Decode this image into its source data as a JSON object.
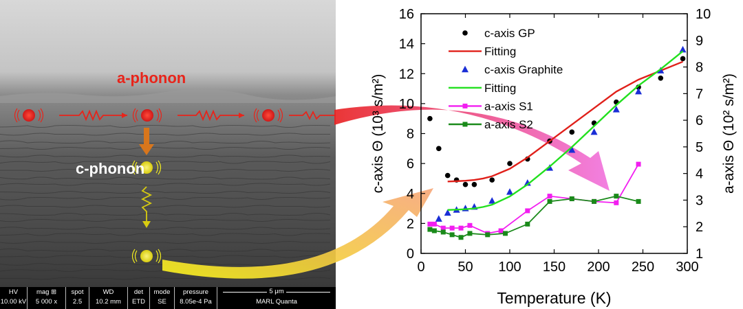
{
  "sem_panel": {
    "label_a_phonon": "a-phonon",
    "label_c_phonon": "c-phonon",
    "databar": {
      "headers": [
        "HV",
        "mag ⊞",
        "spot",
        "WD",
        "det",
        "mode",
        "pressure"
      ],
      "values": [
        "10.00 kV",
        "5 000 x",
        "2.5",
        "10.2 mm",
        "ETD",
        "SE",
        "8.05e-4 Pa"
      ],
      "scale_label": "5 μm",
      "instrument": "MARL Quanta"
    },
    "colors": {
      "a_phonon": "#e8241a",
      "c_phonon": "#f2ec1e"
    }
  },
  "chart_data": {
    "type": "scatter",
    "xlabel": "Temperature (K)",
    "ylabel_left": "c-axis Θ (10³ s/m²)",
    "ylabel_right": "a-axis Θ (10² s/m²)",
    "xlim": [
      0,
      300
    ],
    "ylim_left": [
      0,
      16
    ],
    "ylim_right": [
      1,
      10
    ],
    "xticks": [
      0,
      50,
      100,
      150,
      200,
      250,
      300
    ],
    "yticks_left": [
      0,
      2,
      4,
      6,
      8,
      10,
      12,
      14,
      16
    ],
    "yticks_right": [
      1,
      2,
      3,
      4,
      5,
      6,
      7,
      8,
      9,
      10
    ],
    "legend_position": "top-left",
    "grid": false,
    "series": [
      {
        "name": "c-axis GP",
        "kind": "points",
        "marker": "circle",
        "color": "#000000",
        "axis": "left",
        "x": [
          10,
          20,
          30,
          40,
          50,
          60,
          80,
          100,
          120,
          145,
          170,
          195,
          220,
          245,
          270,
          295
        ],
        "y": [
          9.0,
          7.0,
          5.2,
          4.9,
          4.6,
          4.6,
          4.9,
          6.0,
          6.3,
          7.5,
          8.1,
          8.7,
          10.1,
          11.1,
          11.7,
          13.0
        ]
      },
      {
        "name": "Fitting",
        "kind": "line",
        "color": "#e0201a",
        "axis": "left",
        "x": [
          30,
          40,
          50,
          60,
          70,
          80,
          100,
          120,
          145,
          170,
          195,
          220,
          245,
          270,
          295
        ],
        "y": [
          4.8,
          4.82,
          4.85,
          4.9,
          5.0,
          5.15,
          5.65,
          6.4,
          7.5,
          8.6,
          9.7,
          10.8,
          11.6,
          12.2,
          12.8
        ]
      },
      {
        "name": "c-axis Graphite",
        "kind": "points",
        "marker": "triangle",
        "color": "#1a2ed6",
        "axis": "left",
        "x": [
          20,
          30,
          40,
          50,
          60,
          80,
          100,
          120,
          145,
          170,
          195,
          220,
          245,
          270,
          295
        ],
        "y": [
          2.3,
          2.7,
          2.9,
          3.0,
          3.1,
          3.5,
          4.1,
          4.7,
          5.7,
          6.9,
          8.1,
          9.6,
          10.8,
          12.2,
          13.6
        ]
      },
      {
        "name": "Fitting",
        "kind": "line",
        "color": "#22e01e",
        "axis": "left",
        "x": [
          30,
          40,
          50,
          60,
          70,
          80,
          100,
          120,
          145,
          170,
          195,
          220,
          245,
          270,
          295
        ],
        "y": [
          2.9,
          2.92,
          2.95,
          3.0,
          3.1,
          3.25,
          3.8,
          4.6,
          5.8,
          7.1,
          8.5,
          9.9,
          11.2,
          12.3,
          13.5
        ]
      },
      {
        "name": "a-axis S1",
        "kind": "line-points",
        "marker": "square",
        "color": "#f21ef0",
        "axis": "right",
        "x": [
          10,
          15,
          25,
          35,
          45,
          55,
          75,
          90,
          120,
          145,
          170,
          195,
          220,
          245
        ],
        "y": [
          2.1,
          2.1,
          1.95,
          1.95,
          1.95,
          2.05,
          1.75,
          1.85,
          2.6,
          3.15,
          3.05,
          2.95,
          2.9,
          4.35
        ]
      },
      {
        "name": "a-axis S2",
        "kind": "line-points",
        "marker": "square",
        "color": "#1a8a1a",
        "axis": "right",
        "x": [
          10,
          15,
          25,
          35,
          45,
          55,
          75,
          95,
          120,
          145,
          170,
          195,
          220,
          245
        ],
        "y": [
          1.9,
          1.85,
          1.8,
          1.7,
          1.6,
          1.75,
          1.7,
          1.75,
          2.1,
          2.95,
          3.05,
          2.95,
          3.15,
          2.95
        ]
      }
    ]
  }
}
